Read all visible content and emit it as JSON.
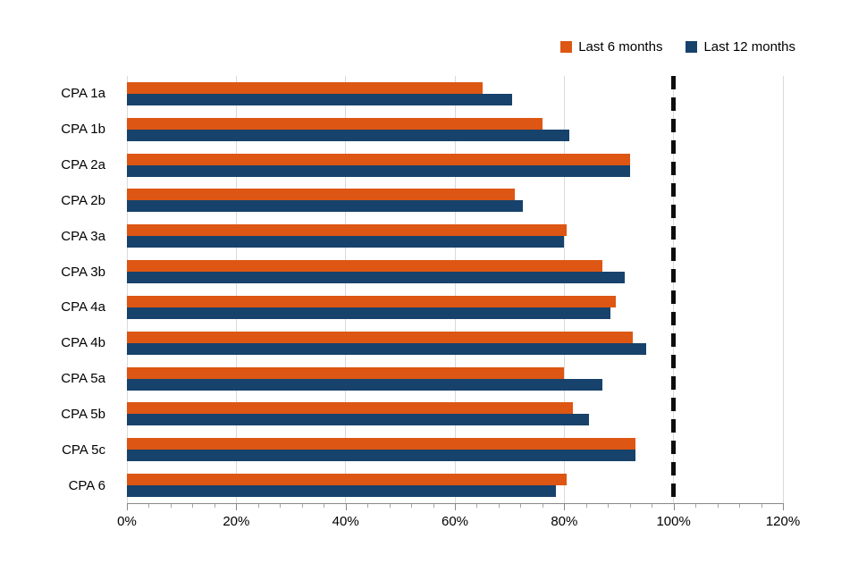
{
  "chart_data": {
    "type": "bar",
    "orientation": "horizontal",
    "title": "",
    "categories": [
      "CPA 1a",
      "CPA 1b",
      "CPA 2a",
      "CPA 2b",
      "CPA 3a",
      "CPA 3b",
      "CPA 4a",
      "CPA 4b",
      "CPA 5a",
      "CPA 5b",
      "CPA 5c",
      "CPA 6"
    ],
    "series": [
      {
        "name": "Last 6 months",
        "color": "#dd5613",
        "values": [
          65,
          76,
          92,
          71,
          80.5,
          87,
          89.5,
          92.5,
          80,
          81.5,
          93,
          80.5
        ]
      },
      {
        "name": "Last 12 months",
        "color": "#17426b",
        "values": [
          70.5,
          81,
          92,
          72.5,
          80,
          91,
          88.5,
          95,
          87,
          84.5,
          93,
          78.5
        ]
      }
    ],
    "xlim": [
      0,
      120
    ],
    "x_tick_step": 20,
    "x_minor_tick_step": 4,
    "x_tick_labels": [
      "0%",
      "20%",
      "40%",
      "60%",
      "80%",
      "100%",
      "120%"
    ],
    "reference_line": {
      "value": 100,
      "style": "dashed",
      "color": "#0d0d0d"
    },
    "gridline_color": "#d9d9d9",
    "legend_position": "top-right",
    "background_color": "#ffffff"
  }
}
